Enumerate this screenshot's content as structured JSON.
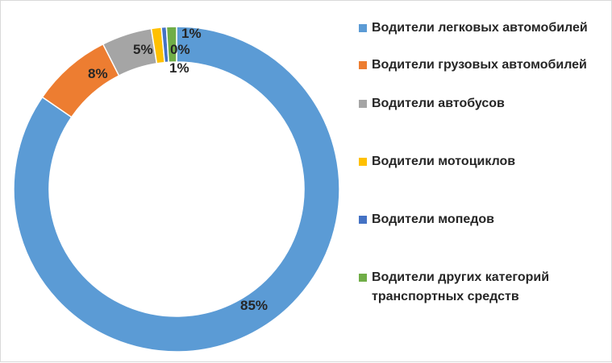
{
  "chart_data": {
    "type": "pie",
    "donut": true,
    "legend_position": "right",
    "slices": [
      {
        "name": "Водители легковых автомобилей",
        "label": "85%",
        "value": 85,
        "color": "#5b9bd5"
      },
      {
        "name": "Водители грузовых автомобилей",
        "label": "8%",
        "value": 8,
        "color": "#ed7d31"
      },
      {
        "name": "Водители автобусов",
        "label": "5%",
        "value": 5,
        "color": "#a5a5a5"
      },
      {
        "name": "Водители мотоциклов",
        "label": "1%",
        "value": 1,
        "color": "#ffc000"
      },
      {
        "name": "Водители мопедов",
        "label": "0%",
        "value": 0.5,
        "color": "#4472c4"
      },
      {
        "name": "Водители других категорий транспортных средств",
        "label": "1%",
        "value": 1,
        "color": "#70ad47"
      }
    ]
  }
}
